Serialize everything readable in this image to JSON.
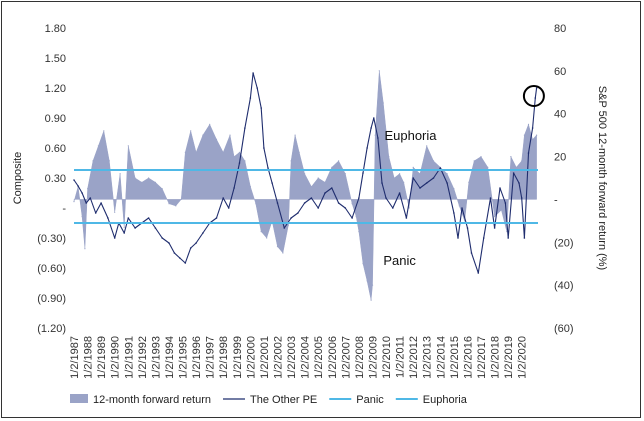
{
  "chart_data": {
    "type": "line",
    "title": "",
    "left_axis": {
      "label": "Composite",
      "range": [
        -1.2,
        1.8
      ],
      "ticks": [
        1.8,
        1.5,
        1.2,
        0.9,
        0.6,
        0.3,
        0,
        -0.3,
        -0.6,
        -0.9,
        -1.2
      ],
      "tick_labels": [
        "1.80",
        "1.50",
        "1.20",
        "0.90",
        "0.60",
        "0.30",
        "-",
        "(0.30)",
        "(0.60)",
        "(0.90)",
        "(1.20)"
      ]
    },
    "right_axis": {
      "label": "S&P 500 12-month forward return (%)",
      "range": [
        -60,
        80
      ],
      "ticks": [
        80,
        60,
        40,
        20,
        0,
        -20,
        -40,
        -60
      ],
      "tick_labels": [
        "80",
        "60",
        "40",
        "20",
        "-",
        "(20)",
        "(40)",
        "(60)"
      ]
    },
    "x_axis": {
      "range": [
        1987,
        2021.2
      ],
      "tick_labels": [
        "1/2/1987",
        "1/2/1988",
        "1/2/1989",
        "1/2/1990",
        "1/2/1991",
        "1/2/1992",
        "1/2/1993",
        "1/2/1994",
        "1/2/1995",
        "1/2/1996",
        "1/2/1997",
        "1/2/1998",
        "1/2/1999",
        "1/2/2000",
        "1/2/2001",
        "1/2/2002",
        "1/2/2003",
        "1/2/2004",
        "1/2/2005",
        "1/2/2006",
        "1/2/2007",
        "1/2/2008",
        "1/2/2009",
        "1/2/2010",
        "1/2/2011",
        "1/2/2012",
        "1/2/2013",
        "1/2/2014",
        "1/2/2015",
        "1/2/2016",
        "1/2/2017",
        "1/2/2018",
        "1/2/2019",
        "1/2/2020"
      ]
    },
    "series": [
      {
        "name": "12-month forward return",
        "kind": "area",
        "axis": "right",
        "color": "#9aa3c7",
        "x": [
          1987.0,
          1987.3,
          1987.6,
          1987.8,
          1988.0,
          1988.4,
          1988.8,
          1989.2,
          1989.6,
          1990.0,
          1990.4,
          1990.7,
          1991.0,
          1991.5,
          1992.0,
          1992.5,
          1993.0,
          1993.5,
          1994.0,
          1994.5,
          1994.9,
          1995.2,
          1995.6,
          1996.0,
          1996.5,
          1997.0,
          1997.5,
          1998.0,
          1998.5,
          1998.8,
          1999.2,
          1999.6,
          2000.0,
          2000.4,
          2000.8,
          2001.2,
          2001.6,
          2002.0,
          2002.4,
          2002.8,
          2003.0,
          2003.3,
          2003.6,
          2004.0,
          2004.5,
          2005.0,
          2005.5,
          2006.0,
          2006.5,
          2007.0,
          2007.5,
          2007.8,
          2008.0,
          2008.3,
          2008.6,
          2008.9,
          2009.0,
          2009.2,
          2009.5,
          2009.8,
          2010.2,
          2010.6,
          2011.0,
          2011.3,
          2011.7,
          2012.0,
          2012.5,
          2013.0,
          2013.5,
          2014.0,
          2014.5,
          2015.0,
          2015.4,
          2015.8,
          2016.1,
          2016.5,
          2017.0,
          2017.5,
          2018.0,
          2018.5,
          2018.9,
          2019.2,
          2019.6,
          2020.0,
          2020.2,
          2020.5,
          2020.8,
          2021.1
        ],
        "values": [
          -1,
          6,
          -8,
          -23,
          5,
          18,
          25,
          32,
          18,
          -6,
          12,
          -13,
          25,
          10,
          8,
          10,
          8,
          5,
          -2,
          -3,
          0,
          22,
          32,
          22,
          30,
          35,
          28,
          22,
          30,
          20,
          22,
          18,
          6,
          -2,
          -15,
          -18,
          -10,
          -22,
          -25,
          -12,
          18,
          30,
          22,
          12,
          6,
          10,
          8,
          15,
          18,
          12,
          -2,
          -8,
          -15,
          -30,
          -38,
          -47,
          -40,
          30,
          60,
          45,
          20,
          10,
          12,
          8,
          -4,
          15,
          12,
          25,
          18,
          15,
          12,
          5,
          -3,
          -10,
          8,
          18,
          20,
          15,
          -8,
          -5,
          -15,
          20,
          15,
          18,
          30,
          35,
          28,
          30
        ]
      },
      {
        "name": "The Other PE",
        "kind": "line",
        "axis": "left",
        "color": "#1f2d6e",
        "x": [
          1987.0,
          1987.3,
          1987.6,
          1987.9,
          1988.2,
          1988.6,
          1989.0,
          1989.5,
          1990.0,
          1990.3,
          1990.7,
          1991.0,
          1991.5,
          1992.0,
          1992.5,
          1993.0,
          1993.5,
          1994.0,
          1994.4,
          1994.8,
          1995.2,
          1995.6,
          1996.0,
          1996.5,
          1997.0,
          1997.5,
          1998.0,
          1998.4,
          1998.8,
          1999.2,
          1999.6,
          2000.0,
          2000.2,
          2000.5,
          2000.8,
          2001.0,
          2001.3,
          2001.6,
          2002.0,
          2002.5,
          2003.0,
          2003.5,
          2004.0,
          2004.5,
          2005.0,
          2005.5,
          2006.0,
          2006.5,
          2007.0,
          2007.5,
          2008.0,
          2008.3,
          2008.6,
          2008.9,
          2009.1,
          2009.4,
          2009.7,
          2010.0,
          2010.5,
          2011.0,
          2011.5,
          2012.0,
          2012.5,
          2013.0,
          2013.5,
          2014.0,
          2014.5,
          2015.0,
          2015.3,
          2015.6,
          2016.0,
          2016.3,
          2016.8,
          2017.2,
          2017.7,
          2018.0,
          2018.4,
          2018.8,
          2019.0,
          2019.4,
          2019.8,
          2020.0,
          2020.2,
          2020.5,
          2020.8,
          2021.0,
          2021.1
        ],
        "values": [
          0.28,
          0.22,
          0.15,
          0.05,
          0.1,
          -0.05,
          0.05,
          -0.1,
          -0.3,
          -0.15,
          -0.25,
          -0.1,
          -0.2,
          -0.15,
          -0.1,
          -0.2,
          -0.3,
          -0.35,
          -0.45,
          -0.5,
          -0.55,
          -0.4,
          -0.35,
          -0.25,
          -0.15,
          -0.1,
          0.1,
          0.0,
          0.2,
          0.45,
          0.8,
          1.1,
          1.35,
          1.2,
          1.0,
          0.6,
          0.4,
          0.25,
          0.05,
          -0.2,
          -0.1,
          -0.05,
          0.05,
          0.1,
          0.0,
          0.15,
          0.2,
          0.05,
          0.0,
          -0.1,
          0.1,
          0.35,
          0.6,
          0.8,
          0.9,
          0.7,
          0.25,
          0.1,
          0.0,
          0.15,
          -0.1,
          0.3,
          0.2,
          0.25,
          0.3,
          0.4,
          0.25,
          -0.05,
          -0.3,
          0.0,
          -0.2,
          -0.45,
          -0.65,
          -0.3,
          0.1,
          -0.2,
          0.2,
          0.05,
          -0.3,
          0.35,
          0.25,
          0.1,
          -0.3,
          0.55,
          0.8,
          1.1,
          1.2
        ]
      },
      {
        "name": "Panic",
        "kind": "hline",
        "axis": "left",
        "color": "#4fb8e6",
        "value": -0.15
      },
      {
        "name": "Euphoria",
        "kind": "hline",
        "axis": "left",
        "color": "#4fb8e6",
        "value": 0.38
      }
    ],
    "annotations": [
      {
        "text": "Euphoria",
        "x": 2011.8,
        "y_left": 0.68
      },
      {
        "text": "Panic",
        "x": 2011.0,
        "y_left": -0.57
      }
    ],
    "highlight": {
      "shape": "circle",
      "x": 2020.9,
      "y_left": 1.12
    },
    "legend": {
      "position": "bottom"
    },
    "grid": false
  }
}
